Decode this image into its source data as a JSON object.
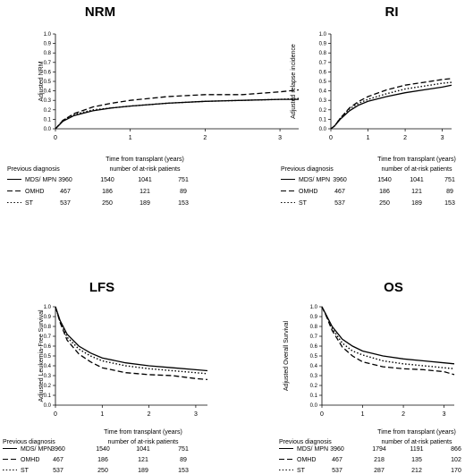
{
  "chart_data": [
    {
      "type": "line",
      "title": "NRM",
      "ylabel": "Adjusted NRM",
      "xlabel": "Time from transplant (years)",
      "xlim": [
        0,
        3.25
      ],
      "ylim": [
        0,
        1
      ],
      "x_ticks": [
        "0",
        "1",
        "2",
        "3"
      ],
      "y_ticks": [
        "0.0",
        "0.1",
        "0.2",
        "0.3",
        "0.4",
        "0.5",
        "0.6",
        "0.7",
        "0.8",
        "0.9",
        "1.0"
      ],
      "grid": false,
      "series": [
        {
          "name": "MDS/ MPN",
          "style": "solid",
          "x": [
            0,
            0.1,
            0.25,
            0.5,
            0.75,
            1,
            1.5,
            2,
            2.5,
            3,
            3.25
          ],
          "y": [
            0,
            0.08,
            0.14,
            0.19,
            0.22,
            0.24,
            0.27,
            0.29,
            0.3,
            0.31,
            0.31
          ]
        },
        {
          "name": "OMHD",
          "style": "dashed",
          "x": [
            0,
            0.1,
            0.25,
            0.5,
            0.75,
            1,
            1.5,
            2,
            2.5,
            3,
            3.25
          ],
          "y": [
            0,
            0.09,
            0.16,
            0.23,
            0.27,
            0.3,
            0.34,
            0.36,
            0.36,
            0.39,
            0.41
          ]
        },
        {
          "name": "ST",
          "style": "dotted",
          "x": [
            0,
            0.1,
            0.25,
            0.5,
            0.75,
            1,
            1.5,
            2,
            2.5,
            3,
            3.25
          ],
          "y": [
            0,
            0.09,
            0.15,
            0.2,
            0.22,
            0.24,
            0.27,
            0.29,
            0.3,
            0.31,
            0.32
          ]
        }
      ],
      "risk_table": {
        "title": "number of at-risk patients",
        "header": "Previous diagnosis",
        "rows": [
          {
            "label": "MDS/ MPN",
            "values": [
              "3960",
              "1540",
              "1041",
              "751"
            ]
          },
          {
            "label": "OMHD",
            "values": [
              "467",
              "186",
              "121",
              "89"
            ]
          },
          {
            "label": "ST",
            "values": [
              "537",
              "250",
              "189",
              "153"
            ]
          }
        ]
      }
    },
    {
      "type": "line",
      "title": "RI",
      "ylabel": "Adjusted relapse incidence",
      "xlabel": "Time from transplant (years)",
      "xlim": [
        0,
        3.25
      ],
      "ylim": [
        0,
        1
      ],
      "x_ticks": [
        "0",
        "1",
        "2",
        "3"
      ],
      "y_ticks": [
        "0.0",
        "0.1",
        "0.2",
        "0.3",
        "0.4",
        "0.5",
        "0.6",
        "0.7",
        "0.8",
        "0.9",
        "1.0"
      ],
      "grid": false,
      "series": [
        {
          "name": "MDS/ MPN",
          "style": "solid",
          "x": [
            0,
            0.1,
            0.25,
            0.5,
            0.75,
            1,
            1.5,
            2,
            2.5,
            3,
            3.25
          ],
          "y": [
            0,
            0.03,
            0.1,
            0.19,
            0.25,
            0.29,
            0.34,
            0.38,
            0.41,
            0.44,
            0.46
          ]
        },
        {
          "name": "OMHD",
          "style": "dashed",
          "x": [
            0,
            0.1,
            0.25,
            0.5,
            0.75,
            1,
            1.5,
            2,
            2.5,
            3,
            3.25
          ],
          "y": [
            0,
            0.03,
            0.11,
            0.22,
            0.29,
            0.34,
            0.41,
            0.46,
            0.49,
            0.52,
            0.53
          ]
        },
        {
          "name": "ST",
          "style": "dotted",
          "x": [
            0,
            0.1,
            0.25,
            0.5,
            0.75,
            1,
            1.5,
            2,
            2.5,
            3,
            3.25
          ],
          "y": [
            0,
            0.03,
            0.11,
            0.21,
            0.27,
            0.31,
            0.37,
            0.42,
            0.45,
            0.48,
            0.49
          ]
        }
      ],
      "risk_table": {
        "title": "number of at-risk patients",
        "header": "Previous diagnosis",
        "rows": [
          {
            "label": "MDS/ MPN",
            "values": [
              "3960",
              "1540",
              "1041",
              "751"
            ]
          },
          {
            "label": "OMHD",
            "values": [
              "467",
              "186",
              "121",
              "89"
            ]
          },
          {
            "label": "ST",
            "values": [
              "537",
              "250",
              "189",
              "153"
            ]
          }
        ]
      }
    },
    {
      "type": "line",
      "title": "LFS",
      "ylabel": "Adjusted Leukemia-Free Survival",
      "xlabel": "Time from transplant (years)",
      "xlim": [
        0,
        3.25
      ],
      "ylim": [
        0,
        1
      ],
      "x_ticks": [
        "0",
        "1",
        "2",
        "3"
      ],
      "y_ticks": [
        "0.0",
        "0.1",
        "0.2",
        "0.3",
        "0.4",
        "0.5",
        "0.6",
        "0.7",
        "0.8",
        "0.9",
        "1.0"
      ],
      "grid": false,
      "series": [
        {
          "name": "MDS/ MPN",
          "style": "solid",
          "x": [
            0,
            0.1,
            0.25,
            0.5,
            0.75,
            1,
            1.5,
            2,
            2.5,
            3,
            3.25
          ],
          "y": [
            1,
            0.86,
            0.72,
            0.6,
            0.53,
            0.48,
            0.43,
            0.4,
            0.38,
            0.36,
            0.35
          ]
        },
        {
          "name": "OMHD",
          "style": "dashed",
          "x": [
            0,
            0.1,
            0.25,
            0.5,
            0.75,
            1,
            1.5,
            2,
            2.5,
            3,
            3.25
          ],
          "y": [
            1,
            0.84,
            0.66,
            0.52,
            0.44,
            0.38,
            0.33,
            0.31,
            0.3,
            0.27,
            0.26
          ]
        },
        {
          "name": "ST",
          "style": "dotted",
          "x": [
            0,
            0.1,
            0.25,
            0.5,
            0.75,
            1,
            1.5,
            2,
            2.5,
            3,
            3.25
          ],
          "y": [
            1,
            0.85,
            0.69,
            0.57,
            0.5,
            0.45,
            0.4,
            0.37,
            0.35,
            0.33,
            0.32
          ]
        }
      ],
      "risk_table": {
        "title": "number of at-risk patients",
        "header": "Previous diagnosis",
        "rows": [
          {
            "label": "MDS/ MPN",
            "values": [
              "3960",
              "1540",
              "1041",
              "751"
            ]
          },
          {
            "label": "OMHD",
            "values": [
              "467",
              "186",
              "121",
              "89"
            ]
          },
          {
            "label": "ST",
            "values": [
              "537",
              "250",
              "189",
              "153"
            ]
          }
        ]
      }
    },
    {
      "type": "line",
      "title": "OS",
      "ylabel": "Adjusted Overall Survival",
      "xlabel": "Time from transplant (years)",
      "xlim": [
        0,
        3.25
      ],
      "ylim": [
        0,
        1
      ],
      "x_ticks": [
        "0",
        "1",
        "2",
        "3"
      ],
      "y_ticks": [
        "0.0",
        "0.1",
        "0.2",
        "0.3",
        "0.4",
        "0.5",
        "0.6",
        "0.7",
        "0.8",
        "0.9",
        "1.0"
      ],
      "grid": false,
      "series": [
        {
          "name": "MDS/ MPN",
          "style": "solid",
          "x": [
            0,
            0.1,
            0.25,
            0.5,
            0.75,
            1,
            1.5,
            2,
            2.5,
            3,
            3.25
          ],
          "y": [
            1,
            0.92,
            0.8,
            0.67,
            0.6,
            0.55,
            0.5,
            0.47,
            0.45,
            0.43,
            0.42
          ]
        },
        {
          "name": "OMHD",
          "style": "dashed",
          "x": [
            0,
            0.1,
            0.25,
            0.5,
            0.75,
            1,
            1.5,
            2,
            2.5,
            3,
            3.25
          ],
          "y": [
            1,
            0.91,
            0.76,
            0.59,
            0.5,
            0.44,
            0.39,
            0.37,
            0.36,
            0.34,
            0.31
          ]
        },
        {
          "name": "ST",
          "style": "dotted",
          "x": [
            0,
            0.1,
            0.25,
            0.5,
            0.75,
            1,
            1.5,
            2,
            2.5,
            3,
            3.25
          ],
          "y": [
            1,
            0.92,
            0.78,
            0.63,
            0.55,
            0.51,
            0.45,
            0.42,
            0.4,
            0.38,
            0.37
          ]
        }
      ],
      "risk_table": {
        "title": "number of at-risk patients",
        "header": "Previous diagnosis",
        "rows": [
          {
            "label": "MDS/ MPN",
            "values": [
              "3960",
              "1794",
              "1191",
              "866"
            ]
          },
          {
            "label": "OMHD",
            "values": [
              "467",
              "218",
              "135",
              "102"
            ]
          },
          {
            "label": "ST",
            "values": [
              "537",
              "287",
              "212",
              "170"
            ]
          }
        ]
      }
    }
  ]
}
